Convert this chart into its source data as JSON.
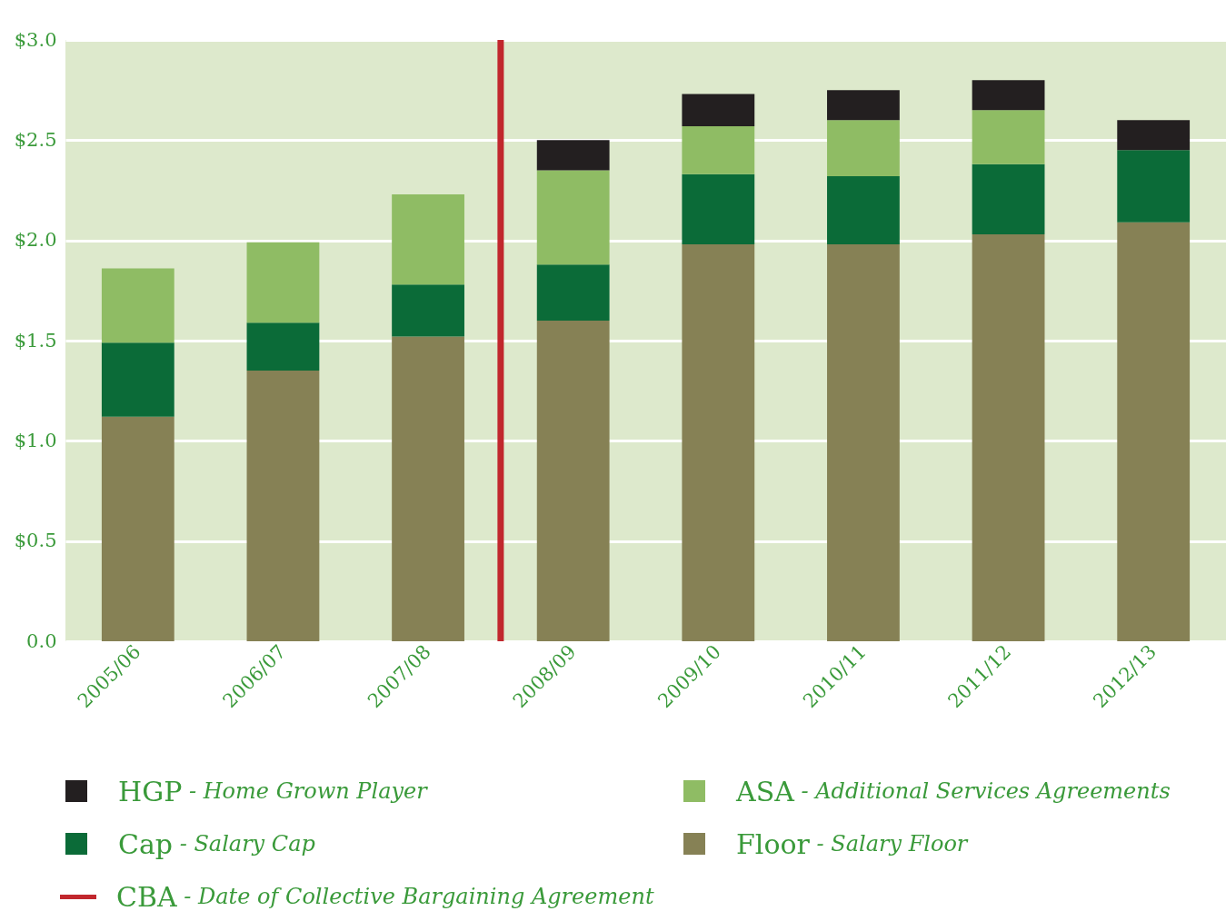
{
  "chart_data": {
    "type": "bar",
    "stacked": true,
    "categories": [
      "2005/06",
      "2006/07",
      "2007/08",
      "2008/09",
      "2009/10",
      "2010/11",
      "2011/12",
      "2012/13"
    ],
    "series": [
      {
        "name": "Floor - Salary Floor",
        "color": "#868155",
        "values": [
          1.12,
          1.35,
          1.52,
          1.6,
          1.98,
          1.98,
          2.03,
          2.09
        ]
      },
      {
        "name": "Cap - Salary Cap",
        "color": "#0b6b38",
        "values": [
          0.37,
          0.24,
          0.26,
          0.28,
          0.35,
          0.34,
          0.35,
          0.36
        ]
      },
      {
        "name": "ASA - Additional Services Agreements",
        "color": "#8fbc64",
        "values": [
          0.37,
          0.4,
          0.45,
          0.47,
          0.24,
          0.28,
          0.27,
          null
        ]
      },
      {
        "name": "HGP - Home Grown Player",
        "color": "#231f20",
        "values": [
          null,
          null,
          null,
          0.15,
          0.16,
          0.15,
          0.15,
          0.15
        ]
      }
    ],
    "ylim": [
      0,
      3
    ],
    "yticks": [
      {
        "value": 0,
        "label": "0.0"
      },
      {
        "value": 0.5,
        "label": "$0.5"
      },
      {
        "value": 1,
        "label": "$1.0"
      },
      {
        "value": 1.5,
        "label": "$1.5"
      },
      {
        "value": 2,
        "label": "$2.0"
      },
      {
        "value": 2.5,
        "label": "$2.5"
      },
      {
        "value": 3,
        "label": "$3.0"
      }
    ],
    "grid": "y",
    "legend": "bottom",
    "ref_lines": [
      {
        "axis": "x",
        "value": "2008/09",
        "label": "CBA - Date of Collective Bargaining Agreement",
        "color": "#c1272d"
      }
    ]
  }
}
